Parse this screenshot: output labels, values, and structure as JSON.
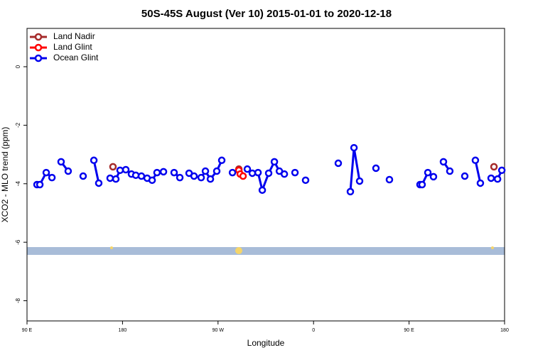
{
  "chart_data": {
    "type": "line",
    "title": "50S-45S August (Ver 10)   2015-01-01 to 2020-12-18",
    "x_label": "Longitude",
    "y_label": "XCO2 - MLO trend (ppm)",
    "xlim": [
      90,
      540
    ],
    "xticks": [
      {
        "value": 90,
        "label": "90 E"
      },
      180,
      {
        "value": 270,
        "label": "90 W"
      },
      {
        "value": 360,
        "label": "0"
      },
      {
        "value": 450,
        "label": "90 E"
      },
      {
        "value": 540,
        "label": "180"
      }
    ],
    "ylim": [
      -8.69,
      1.31
    ],
    "yticks": [
      0,
      -2,
      -4,
      -6,
      -8
    ],
    "legend": "top-left",
    "series": [
      {
        "name": "Land Nadir",
        "color": "#a52a2a",
        "x": [
          171,
          null,
          289.6,
          null,
          530
        ],
        "values": [
          -3.42,
          null,
          -3.5,
          null,
          -3.42
        ]
      },
      {
        "name": "Land Glint",
        "color": "#ff0000",
        "x": [
          289.6,
          290.9,
          293.6
        ],
        "values": [
          -3.54,
          -3.67,
          -3.74
        ]
      },
      {
        "name": "Ocean Glint",
        "color": "#0000ee",
        "x": [
          99.4,
          102.1,
          108.1,
          113.5,
          null,
          122.1,
          128.8,
          null,
          142.9,
          null,
          153,
          157.6,
          null,
          168.3,
          173.7,
          177.7,
          183.1,
          188.4,
          192.5,
          197.8,
          203.2,
          207.9,
          212.5,
          218.6,
          null,
          228.6,
          234,
          null,
          242.7,
          247.4,
          254.1,
          258.1,
          262.8,
          268.8,
          273.5,
          null,
          283.6,
          null,
          297.6,
          302.3,
          307.7,
          311.7,
          317.7,
          323.1,
          327.8,
          332.5,
          null,
          342.5,
          null,
          352.5,
          null,
          383.3,
          null,
          394.7,
          398.1,
          403.4,
          null,
          418.8,
          null,
          431.5,
          null,
          460.3,
          462.3,
          467.7,
          473,
          null,
          482.4,
          488.4,
          null,
          502.5,
          null,
          512.5,
          517.2,
          null,
          527.3,
          533.4,
          537.4
        ],
        "values": [
          -4.03,
          -4.03,
          -3.62,
          -3.79,
          null,
          -3.25,
          -3.57,
          null,
          -3.74,
          null,
          -3.2,
          -3.98,
          null,
          -3.81,
          -3.84,
          -3.54,
          -3.52,
          -3.67,
          -3.71,
          -3.74,
          -3.81,
          -3.88,
          -3.62,
          -3.59,
          null,
          -3.62,
          -3.79,
          null,
          -3.64,
          -3.74,
          -3.79,
          -3.57,
          -3.84,
          -3.57,
          -3.2,
          null,
          -3.62,
          null,
          -3.5,
          -3.64,
          -3.62,
          -4.22,
          -3.64,
          -3.25,
          -3.57,
          -3.67,
          null,
          -3.62,
          null,
          -3.88,
          null,
          -3.3,
          null,
          -4.27,
          -2.77,
          -3.91,
          null,
          -3.47,
          null,
          -3.86,
          null,
          -4.03,
          -4.03,
          -3.62,
          -3.76,
          null,
          -3.25,
          -3.57,
          null,
          -3.74,
          null,
          -3.2,
          -3.98,
          null,
          -3.81,
          -3.84,
          -3.54
        ]
      }
    ]
  }
}
